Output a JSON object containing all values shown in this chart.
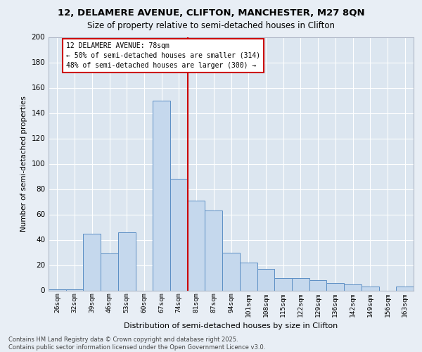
{
  "title_line1": "12, DELAMERE AVENUE, CLIFTON, MANCHESTER, M27 8QN",
  "title_line2": "Size of property relative to semi-detached houses in Clifton",
  "xlabel": "Distribution of semi-detached houses by size in Clifton",
  "ylabel": "Number of semi-detached properties",
  "categories": [
    "26sqm",
    "32sqm",
    "39sqm",
    "46sqm",
    "53sqm",
    "60sqm",
    "67sqm",
    "74sqm",
    "81sqm",
    "87sqm",
    "94sqm",
    "101sqm",
    "108sqm",
    "115sqm",
    "122sqm",
    "129sqm",
    "136sqm",
    "142sqm",
    "149sqm",
    "156sqm",
    "163sqm"
  ],
  "values": [
    1,
    1,
    45,
    29,
    46,
    0,
    150,
    88,
    71,
    63,
    30,
    22,
    17,
    10,
    10,
    8,
    6,
    5,
    3,
    0,
    3
  ],
  "bar_color": "#c5d8ed",
  "bar_edge_color": "#5b8ec4",
  "vline_x_index": 7.5,
  "vline_color": "#cc0000",
  "annotation_text": "12 DELAMERE AVENUE: 78sqm\n← 50% of semi-detached houses are smaller (314)\n48% of semi-detached houses are larger (300) →",
  "annotation_box_facecolor": "#ffffff",
  "annotation_box_edgecolor": "#cc0000",
  "ylim": [
    0,
    200
  ],
  "yticks": [
    0,
    20,
    40,
    60,
    80,
    100,
    120,
    140,
    160,
    180,
    200
  ],
  "footer_line1": "Contains HM Land Registry data © Crown copyright and database right 2025.",
  "footer_line2": "Contains public sector information licensed under the Open Government Licence v3.0.",
  "fig_bg_color": "#e8eef5",
  "plot_bg_color": "#dce6f0",
  "grid_color": "#ffffff",
  "spine_color": "#b0b8c8"
}
